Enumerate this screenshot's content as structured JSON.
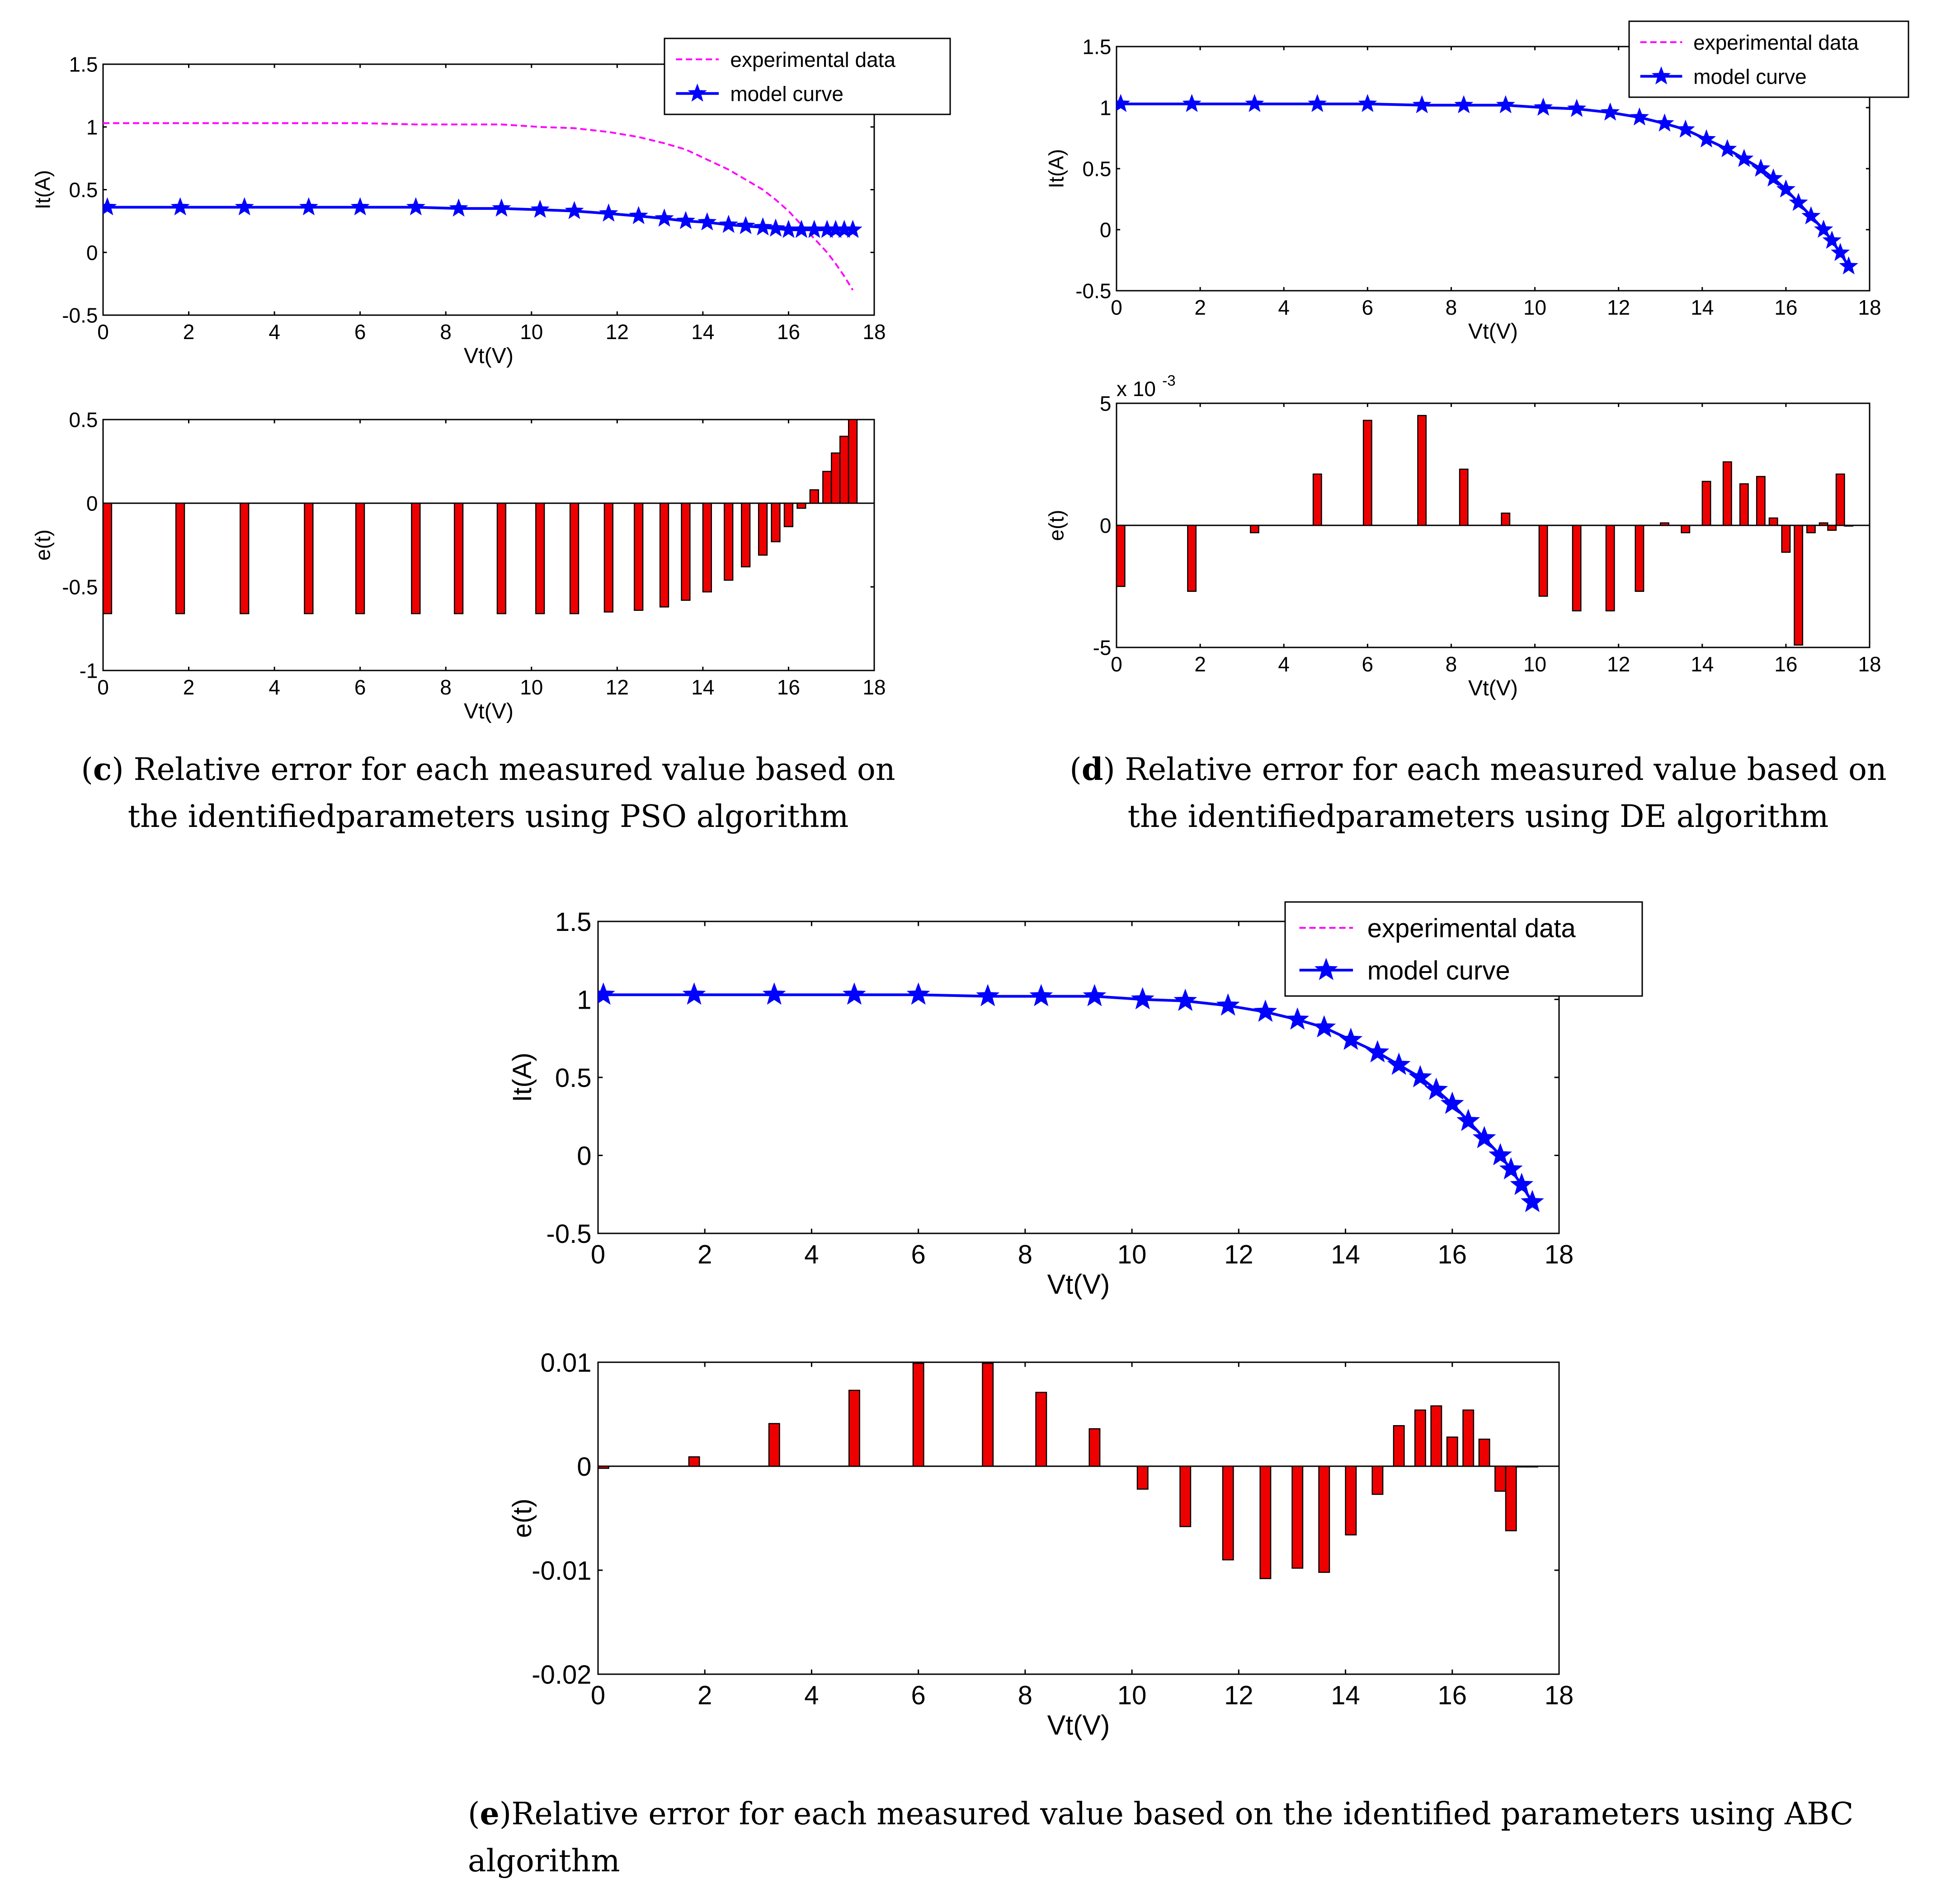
{
  "captions": {
    "c": {
      "label": "c",
      "pre": "(",
      "post": ") Relative error for each measured value based on the identifiedparameters using PSO algorithm"
    },
    "d": {
      "label": "d",
      "pre": "(",
      "post": ") Relative error for each measured value based on the identifiedparameters using DE algorithm"
    },
    "e": {
      "label": "e",
      "pre": "(",
      "post": ")Relative error for each measured value based on the identified parameters using ABC algorithm"
    }
  },
  "colors": {
    "experimental": "#ff00ff",
    "model": "#0000ff",
    "bars": "#ee0000",
    "axis": "#000000"
  },
  "chart_data": [
    {
      "id": "c-iv",
      "type": "line",
      "xlabel": "Vt(V)",
      "ylabel": "It(A)",
      "xlim": [
        0,
        18
      ],
      "ylim": [
        -0.5,
        1.5
      ],
      "xticks": [
        0,
        2,
        4,
        6,
        8,
        10,
        12,
        14,
        16,
        18
      ],
      "yticks": [
        -0.5,
        0,
        0.5,
        1,
        1.5
      ],
      "ytick_labels": [
        "-0.5",
        "0",
        "0.5",
        "1",
        "1.5"
      ],
      "legend": {
        "position": "top-right",
        "entries": [
          "experimental data",
          "model curve"
        ]
      },
      "series": [
        {
          "name": "experimental data",
          "style": "dashed",
          "x": [
            0,
            1.8,
            3.3,
            4.8,
            6.0,
            7.3,
            8.3,
            9.3,
            10.2,
            11.0,
            11.8,
            12.5,
            13.1,
            13.6,
            14.1,
            14.6,
            15.0,
            15.4,
            15.7,
            16.0,
            16.3,
            16.6,
            16.9,
            17.1,
            17.3,
            17.5
          ],
          "y": [
            1.03,
            1.03,
            1.03,
            1.03,
            1.03,
            1.02,
            1.02,
            1.02,
            1.0,
            0.99,
            0.96,
            0.92,
            0.87,
            0.82,
            0.74,
            0.66,
            0.58,
            0.5,
            0.42,
            0.33,
            0.22,
            0.11,
            0.0,
            -0.09,
            -0.19,
            -0.3
          ]
        },
        {
          "name": "model curve",
          "style": "solid-star",
          "x": [
            0.1,
            1.8,
            3.3,
            4.8,
            6.0,
            7.3,
            8.3,
            9.3,
            10.2,
            11.0,
            11.8,
            12.5,
            13.1,
            13.6,
            14.1,
            14.6,
            15.0,
            15.4,
            15.7,
            16.0,
            16.3,
            16.6,
            16.9,
            17.1,
            17.3,
            17.5
          ],
          "y": [
            0.36,
            0.36,
            0.36,
            0.36,
            0.36,
            0.36,
            0.35,
            0.35,
            0.34,
            0.33,
            0.31,
            0.29,
            0.27,
            0.25,
            0.24,
            0.22,
            0.21,
            0.2,
            0.19,
            0.18,
            0.18,
            0.18,
            0.18,
            0.18,
            0.18,
            0.18
          ]
        }
      ]
    },
    {
      "id": "c-err",
      "type": "bar",
      "xlabel": "Vt(V)",
      "ylabel": "e(t)",
      "xlim": [
        0,
        18
      ],
      "ylim": [
        -1,
        0.5
      ],
      "xticks": [
        0,
        2,
        4,
        6,
        8,
        10,
        12,
        14,
        16,
        18
      ],
      "yticks": [
        -1,
        -0.5,
        0,
        0.5
      ],
      "ytick_labels": [
        "-1",
        "-0.5",
        "0",
        "0.5"
      ],
      "x": [
        0.1,
        1.8,
        3.3,
        4.8,
        6.0,
        7.3,
        8.3,
        9.3,
        10.2,
        11.0,
        11.8,
        12.5,
        13.1,
        13.6,
        14.1,
        14.6,
        15.0,
        15.4,
        15.7,
        16.0,
        16.3,
        16.6,
        16.9,
        17.1,
        17.3,
        17.5
      ],
      "values": [
        -0.66,
        -0.66,
        -0.66,
        -0.66,
        -0.66,
        -0.66,
        -0.66,
        -0.66,
        -0.66,
        -0.66,
        -0.65,
        -0.64,
        -0.62,
        -0.58,
        -0.53,
        -0.46,
        -0.38,
        -0.31,
        -0.23,
        -0.14,
        -0.03,
        0.08,
        0.19,
        0.3,
        0.4,
        0.5
      ]
    },
    {
      "id": "d-iv",
      "type": "line",
      "xlabel": "Vt(V)",
      "ylabel": "It(A)",
      "xlim": [
        0,
        18
      ],
      "ylim": [
        -0.5,
        1.5
      ],
      "xticks": [
        0,
        2,
        4,
        6,
        8,
        10,
        12,
        14,
        16,
        18
      ],
      "yticks": [
        -0.5,
        0,
        0.5,
        1,
        1.5
      ],
      "ytick_labels": [
        "-0.5",
        "0",
        "0.5",
        "1",
        "1.5"
      ],
      "legend": {
        "position": "top-right",
        "entries": [
          "experimental data",
          "model curve"
        ]
      },
      "series": [
        {
          "name": "experimental data",
          "style": "dashed",
          "x": [
            0,
            1.8,
            3.3,
            4.8,
            6.0,
            7.3,
            8.3,
            9.3,
            10.2,
            11.0,
            11.8,
            12.5,
            13.1,
            13.6,
            14.1,
            14.6,
            15.0,
            15.4,
            15.7,
            16.0,
            16.3,
            16.6,
            16.9,
            17.1,
            17.3,
            17.5
          ],
          "y": [
            1.03,
            1.03,
            1.03,
            1.03,
            1.03,
            1.02,
            1.02,
            1.02,
            1.0,
            0.99,
            0.96,
            0.92,
            0.87,
            0.82,
            0.74,
            0.66,
            0.58,
            0.5,
            0.42,
            0.33,
            0.22,
            0.11,
            0.0,
            -0.09,
            -0.19,
            -0.3
          ]
        },
        {
          "name": "model curve",
          "style": "solid-star",
          "x": [
            0.1,
            1.8,
            3.3,
            4.8,
            6.0,
            7.3,
            8.3,
            9.3,
            10.2,
            11.0,
            11.8,
            12.5,
            13.1,
            13.6,
            14.1,
            14.6,
            15.0,
            15.4,
            15.7,
            16.0,
            16.3,
            16.6,
            16.9,
            17.1,
            17.3,
            17.5
          ],
          "y": [
            1.03,
            1.03,
            1.03,
            1.03,
            1.03,
            1.02,
            1.02,
            1.02,
            1.0,
            0.99,
            0.96,
            0.92,
            0.87,
            0.82,
            0.74,
            0.66,
            0.58,
            0.5,
            0.42,
            0.33,
            0.22,
            0.11,
            0.0,
            -0.09,
            -0.19,
            -0.3
          ]
        }
      ]
    },
    {
      "id": "d-err",
      "type": "bar",
      "xlabel": "Vt(V)",
      "ylabel": "e(t)",
      "scale_label": "x 10",
      "scale_exponent": "-3",
      "xlim": [
        0,
        18
      ],
      "ylim": [
        -5,
        5
      ],
      "xticks": [
        0,
        2,
        4,
        6,
        8,
        10,
        12,
        14,
        16,
        18
      ],
      "yticks": [
        -5,
        0,
        5
      ],
      "ytick_labels": [
        "-5",
        "0",
        "5"
      ],
      "x": [
        0.1,
        1.8,
        3.3,
        4.8,
        6.0,
        7.3,
        8.3,
        9.3,
        10.2,
        11.0,
        11.8,
        12.5,
        13.1,
        13.6,
        14.1,
        14.6,
        15.0,
        15.4,
        15.7,
        16.0,
        16.3,
        16.6,
        16.9,
        17.1,
        17.3,
        17.5
      ],
      "values": [
        -2.5,
        -2.7,
        -0.3,
        2.1,
        4.3,
        4.5,
        2.3,
        0.5,
        -2.9,
        -3.5,
        -3.5,
        -2.7,
        0.1,
        -0.3,
        1.8,
        2.6,
        1.7,
        2.0,
        0.3,
        -1.1,
        -4.9,
        -0.3,
        0.1,
        -0.2,
        2.1,
        0.0
      ]
    },
    {
      "id": "e-iv",
      "type": "line",
      "xlabel": "Vt(V)",
      "ylabel": "It(A)",
      "xlim": [
        0,
        18
      ],
      "ylim": [
        -0.5,
        1.5
      ],
      "xticks": [
        0,
        2,
        4,
        6,
        8,
        10,
        12,
        14,
        16,
        18
      ],
      "yticks": [
        -0.5,
        0,
        0.5,
        1,
        1.5
      ],
      "ytick_labels": [
        "-0.5",
        "0",
        "0.5",
        "1",
        "1.5"
      ],
      "legend": {
        "position": "top-right",
        "entries": [
          "experimental data",
          "model curve"
        ]
      },
      "series": [
        {
          "name": "experimental data",
          "style": "dashed",
          "x": [
            0,
            1.8,
            3.3,
            4.8,
            6.0,
            7.3,
            8.3,
            9.3,
            10.2,
            11.0,
            11.8,
            12.5,
            13.1,
            13.6,
            14.1,
            14.6,
            15.0,
            15.4,
            15.7,
            16.0,
            16.3,
            16.6,
            16.9,
            17.1,
            17.3,
            17.5
          ],
          "y": [
            1.03,
            1.03,
            1.03,
            1.03,
            1.03,
            1.02,
            1.02,
            1.02,
            1.0,
            0.99,
            0.96,
            0.92,
            0.87,
            0.82,
            0.74,
            0.66,
            0.58,
            0.5,
            0.42,
            0.33,
            0.22,
            0.11,
            0.0,
            -0.09,
            -0.19,
            -0.3
          ]
        },
        {
          "name": "model curve",
          "style": "solid-star",
          "x": [
            0.1,
            1.8,
            3.3,
            4.8,
            6.0,
            7.3,
            8.3,
            9.3,
            10.2,
            11.0,
            11.8,
            12.5,
            13.1,
            13.6,
            14.1,
            14.6,
            15.0,
            15.4,
            15.7,
            16.0,
            16.3,
            16.6,
            16.9,
            17.1,
            17.3,
            17.5
          ],
          "y": [
            1.03,
            1.03,
            1.03,
            1.03,
            1.03,
            1.02,
            1.02,
            1.02,
            1.0,
            0.99,
            0.96,
            0.92,
            0.87,
            0.82,
            0.74,
            0.66,
            0.58,
            0.5,
            0.42,
            0.33,
            0.22,
            0.11,
            0.0,
            -0.09,
            -0.19,
            -0.3
          ]
        }
      ]
    },
    {
      "id": "e-err",
      "type": "bar",
      "xlabel": "Vt(V)",
      "ylabel": "e(t)",
      "xlim": [
        0,
        18
      ],
      "ylim": [
        -0.02,
        0.01
      ],
      "xticks": [
        0,
        2,
        4,
        6,
        8,
        10,
        12,
        14,
        16,
        18
      ],
      "yticks": [
        -0.02,
        -0.01,
        0,
        0.01
      ],
      "ytick_labels": [
        "-0.02",
        "-0.01",
        "0",
        "0.01"
      ],
      "x": [
        0.1,
        1.8,
        3.3,
        4.8,
        6.0,
        7.3,
        8.3,
        9.3,
        10.2,
        11.0,
        11.8,
        12.5,
        13.1,
        13.6,
        14.1,
        14.6,
        15.0,
        15.4,
        15.7,
        16.0,
        16.3,
        16.6,
        16.9,
        17.1,
        17.3,
        17.5
      ],
      "values": [
        -0.0002,
        0.0009,
        0.0041,
        0.0073,
        0.0099,
        0.0099,
        0.0071,
        0.0036,
        -0.0022,
        -0.0058,
        -0.009,
        -0.0108,
        -0.0098,
        -0.0102,
        -0.0066,
        -0.0027,
        0.0039,
        0.0054,
        0.0058,
        0.0028,
        0.0054,
        0.0026,
        -0.0024,
        -0.0062,
        0.0,
        0.0
      ]
    }
  ]
}
